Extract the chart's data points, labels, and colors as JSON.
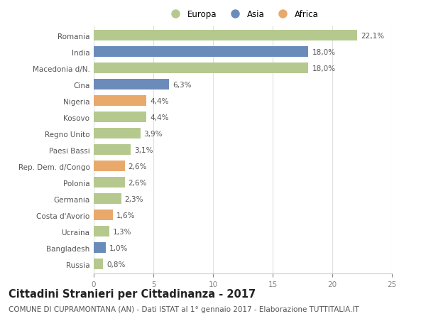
{
  "countries": [
    "Romania",
    "India",
    "Macedonia d/N.",
    "Cina",
    "Nigeria",
    "Kosovo",
    "Regno Unito",
    "Paesi Bassi",
    "Rep. Dem. d/Congo",
    "Polonia",
    "Germania",
    "Costa d'Avorio",
    "Ucraina",
    "Bangladesh",
    "Russia"
  ],
  "values": [
    22.1,
    18.0,
    18.0,
    6.3,
    4.4,
    4.4,
    3.9,
    3.1,
    2.6,
    2.6,
    2.3,
    1.6,
    1.3,
    1.0,
    0.8
  ],
  "labels": [
    "22,1%",
    "18,0%",
    "18,0%",
    "6,3%",
    "4,4%",
    "4,4%",
    "3,9%",
    "3,1%",
    "2,6%",
    "2,6%",
    "2,3%",
    "1,6%",
    "1,3%",
    "1,0%",
    "0,8%"
  ],
  "continents": [
    "Europa",
    "Asia",
    "Europa",
    "Asia",
    "Africa",
    "Europa",
    "Europa",
    "Europa",
    "Africa",
    "Europa",
    "Europa",
    "Africa",
    "Europa",
    "Asia",
    "Europa"
  ],
  "color_map": {
    "Europa": "#b5c98e",
    "Asia": "#6b8cba",
    "Africa": "#e8a96b"
  },
  "legend_order": [
    "Europa",
    "Asia",
    "Africa"
  ],
  "xlim": [
    0,
    25
  ],
  "xticks": [
    0,
    5,
    10,
    15,
    20,
    25
  ],
  "title": "Cittadini Stranieri per Cittadinanza - 2017",
  "subtitle": "COMUNE DI CUPRAMONTANA (AN) - Dati ISTAT al 1° gennaio 2017 - Elaborazione TUTTITALIA.IT",
  "bg_color": "#ffffff",
  "bar_height": 0.65,
  "title_fontsize": 10.5,
  "subtitle_fontsize": 7.5,
  "label_fontsize": 7.5,
  "tick_fontsize": 7.5,
  "legend_fontsize": 8.5
}
